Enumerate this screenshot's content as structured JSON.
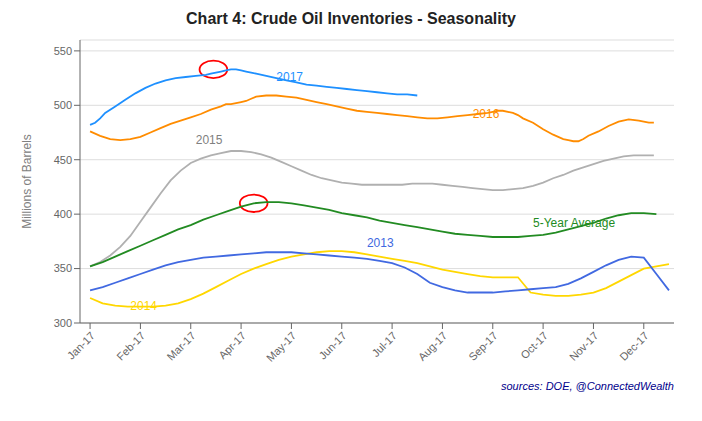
{
  "chart_data": {
    "type": "line",
    "title": "Chart 4: Crude Oil Inventories - Seasonality",
    "ylabel": "Millions of Barrels",
    "source": {
      "text": "sources: DOE, @ConnectedWealth",
      "color": "#00008b"
    },
    "xlim": [
      -0.2,
      11.6
    ],
    "xticks": [
      {
        "value": 0,
        "label": "Jan-17"
      },
      {
        "value": 1,
        "label": "Feb-17"
      },
      {
        "value": 2,
        "label": "Mar-17"
      },
      {
        "value": 3,
        "label": "Apr-17"
      },
      {
        "value": 4,
        "label": "May-17"
      },
      {
        "value": 5,
        "label": "Jun-17"
      },
      {
        "value": 6,
        "label": "Jul-17"
      },
      {
        "value": 7,
        "label": "Aug-17"
      },
      {
        "value": 8,
        "label": "Sep-17"
      },
      {
        "value": 9,
        "label": "Oct-17"
      },
      {
        "value": 10,
        "label": "Nov-17"
      },
      {
        "value": 11,
        "label": "Dec-17"
      }
    ],
    "ylim": [
      300,
      560
    ],
    "yticks": [
      300,
      350,
      400,
      450,
      500,
      550
    ],
    "grid": true,
    "series": [
      {
        "name": "2015",
        "color": "#b0b0b0",
        "x": [
          0,
          0.2,
          0.4,
          0.6,
          0.8,
          1.0,
          1.2,
          1.4,
          1.6,
          1.8,
          2.0,
          2.2,
          2.4,
          2.6,
          2.8,
          3.0,
          3.2,
          3.4,
          3.6,
          3.8,
          4.0,
          4.2,
          4.4,
          4.6,
          4.8,
          5.0,
          5.2,
          5.4,
          5.6,
          5.8,
          6.0,
          6.2,
          6.4,
          6.6,
          6.8,
          7.0,
          7.2,
          7.4,
          7.6,
          7.8,
          8.0,
          8.2,
          8.4,
          8.6,
          8.8,
          9.0,
          9.2,
          9.4,
          9.6,
          9.8,
          10.0,
          10.2,
          10.4,
          10.6,
          10.8,
          11.0,
          11.2
        ],
        "values": [
          352,
          356,
          362,
          370,
          380,
          393,
          406,
          419,
          431,
          440,
          447,
          451,
          454,
          456,
          458,
          458,
          457,
          455,
          452,
          448,
          444,
          440,
          436,
          433,
          431,
          429,
          428,
          427,
          427,
          427,
          427,
          427,
          428,
          428,
          428,
          427,
          426,
          425,
          424,
          423,
          422,
          422,
          423,
          424,
          426,
          429,
          433,
          436,
          440,
          443,
          446,
          449,
          451,
          453,
          454,
          454,
          454
        ]
      },
      {
        "name": "5-Year Average",
        "color": "#228b22",
        "x": [
          0,
          0.25,
          0.5,
          0.75,
          1.0,
          1.25,
          1.5,
          1.75,
          2.0,
          2.25,
          2.5,
          2.75,
          3.0,
          3.25,
          3.5,
          3.75,
          4.0,
          4.25,
          4.5,
          4.75,
          5.0,
          5.25,
          5.5,
          5.75,
          6.0,
          6.25,
          6.5,
          6.75,
          7.0,
          7.25,
          7.5,
          7.75,
          8.0,
          8.25,
          8.5,
          8.75,
          9.0,
          9.25,
          9.5,
          9.75,
          10.0,
          10.25,
          10.5,
          10.75,
          11.0,
          11.25
        ],
        "values": [
          352,
          356,
          361,
          366,
          371,
          376,
          381,
          386,
          390,
          395,
          399,
          403,
          407,
          410,
          411,
          411,
          410,
          408,
          406,
          404,
          401,
          399,
          397,
          394,
          392,
          390,
          388,
          386,
          384,
          382,
          381,
          380,
          379,
          379,
          379,
          380,
          381,
          383,
          386,
          389,
          392,
          396,
          399,
          401,
          401,
          400
        ]
      },
      {
        "name": "2016",
        "color": "#ff8c00",
        "x": [
          0,
          0.2,
          0.4,
          0.6,
          0.8,
          1.0,
          1.2,
          1.4,
          1.6,
          1.8,
          2.0,
          2.2,
          2.4,
          2.6,
          2.7,
          2.8,
          2.9,
          3.0,
          3.1,
          3.2,
          3.3,
          3.5,
          3.7,
          3.9,
          4.1,
          4.3,
          4.5,
          4.7,
          4.9,
          5.1,
          5.3,
          5.5,
          5.7,
          5.9,
          6.1,
          6.3,
          6.5,
          6.7,
          6.9,
          7.1,
          7.3,
          7.5,
          7.7,
          7.9,
          8.0,
          8.1,
          8.2,
          8.3,
          8.4,
          8.5,
          8.6,
          8.8,
          9.0,
          9.2,
          9.4,
          9.5,
          9.6,
          9.7,
          9.8,
          9.9,
          10.1,
          10.3,
          10.5,
          10.7,
          10.9,
          11.0,
          11.1,
          11.2
        ],
        "values": [
          476,
          472,
          469,
          468,
          469,
          471,
          475,
          479,
          483,
          486,
          489,
          492,
          496,
          499,
          501,
          501,
          502,
          503,
          504,
          506,
          508,
          509,
          509,
          508,
          507,
          505,
          503,
          501,
          499,
          497,
          495,
          494,
          493,
          492,
          491,
          490,
          489,
          488,
          488,
          489,
          490,
          491,
          492,
          493,
          494,
          495,
          495,
          494,
          493,
          491,
          488,
          484,
          478,
          473,
          469,
          468,
          467,
          467,
          469,
          472,
          476,
          481,
          485,
          487,
          486,
          485,
          484,
          484
        ]
      },
      {
        "name": "2014",
        "color": "#ffd700",
        "x": [
          0,
          0.25,
          0.5,
          0.75,
          1.0,
          1.25,
          1.5,
          1.75,
          2.0,
          2.25,
          2.5,
          2.75,
          3.0,
          3.25,
          3.5,
          3.75,
          4.0,
          4.25,
          4.5,
          4.75,
          5.0,
          5.25,
          5.5,
          5.75,
          6.0,
          6.25,
          6.5,
          6.75,
          7.0,
          7.25,
          7.5,
          7.75,
          8.0,
          8.25,
          8.5,
          8.75,
          9.0,
          9.25,
          9.5,
          9.75,
          10.0,
          10.25,
          10.5,
          10.75,
          11.0,
          11.25,
          11.5
        ],
        "values": [
          323,
          318,
          316,
          315,
          315,
          315,
          316,
          318,
          322,
          327,
          333,
          339,
          345,
          350,
          354,
          358,
          361,
          363,
          365,
          366,
          366,
          365,
          363,
          361,
          359,
          357,
          355,
          352,
          349,
          347,
          345,
          343,
          342,
          342,
          342,
          328,
          326,
          325,
          325,
          326,
          328,
          332,
          338,
          344,
          350,
          352,
          354
        ]
      },
      {
        "name": "2013",
        "color": "#4169e1",
        "x": [
          0,
          0.25,
          0.5,
          0.75,
          1.0,
          1.25,
          1.5,
          1.75,
          2.0,
          2.25,
          2.5,
          2.75,
          3.0,
          3.25,
          3.5,
          3.75,
          4.0,
          4.25,
          4.5,
          4.75,
          5.0,
          5.25,
          5.5,
          5.75,
          6.0,
          6.25,
          6.5,
          6.75,
          7.0,
          7.25,
          7.5,
          7.75,
          8.0,
          8.25,
          8.5,
          8.75,
          9.0,
          9.25,
          9.5,
          9.75,
          10.0,
          10.25,
          10.5,
          10.75,
          11.0,
          11.25,
          11.5
        ],
        "values": [
          330,
          333,
          337,
          341,
          345,
          349,
          353,
          356,
          358,
          360,
          361,
          362,
          363,
          364,
          365,
          365,
          365,
          364,
          363,
          362,
          361,
          360,
          359,
          357,
          355,
          351,
          345,
          337,
          333,
          330,
          328,
          328,
          328,
          329,
          330,
          331,
          332,
          333,
          336,
          341,
          347,
          353,
          358,
          361,
          360,
          345,
          330
        ]
      },
      {
        "name": "2017",
        "color": "#1e90ff",
        "x": [
          0,
          0.1,
          0.2,
          0.3,
          0.5,
          0.7,
          0.9,
          1.1,
          1.3,
          1.5,
          1.7,
          1.9,
          2.1,
          2.3,
          2.4,
          2.5,
          2.6,
          2.7,
          2.8,
          2.9,
          3.0,
          3.1,
          3.2,
          3.3,
          3.5,
          3.7,
          3.9,
          4.1,
          4.3,
          4.5,
          4.7,
          4.9,
          5.1,
          5.3,
          5.5,
          5.7,
          5.9,
          6.1,
          6.3,
          6.5
        ],
        "values": [
          482,
          484,
          488,
          493,
          499,
          505,
          511,
          516,
          520,
          523,
          525,
          526,
          527,
          528,
          529,
          530,
          531,
          532,
          533,
          533,
          532,
          531,
          530,
          529,
          527,
          525,
          523,
          521,
          519,
          518,
          517,
          516,
          515,
          514,
          513,
          512,
          511,
          510,
          510,
          509
        ]
      }
    ],
    "annotations": [
      {
        "text": "2015",
        "x": 2.1,
        "y": 464,
        "color": "#808080"
      },
      {
        "text": "5-Year Average",
        "x": 8.8,
        "y": 388,
        "color": "#228b22"
      },
      {
        "text": "2016",
        "x": 7.6,
        "y": 488,
        "color": "#ff8c00"
      },
      {
        "text": "2014",
        "x": 0.8,
        "y": 312,
        "color": "#ffd700"
      },
      {
        "text": "2013",
        "x": 5.5,
        "y": 370,
        "color": "#4169e1"
      },
      {
        "text": "2017",
        "x": 3.7,
        "y": 522,
        "color": "#1e90ff"
      }
    ],
    "ellipses": [
      {
        "cx": 2.45,
        "cy": 533,
        "w": 0.55,
        "h": 16,
        "color": "red"
      },
      {
        "cx": 3.25,
        "cy": 410,
        "w": 0.55,
        "h": 16,
        "color": "red"
      }
    ]
  }
}
